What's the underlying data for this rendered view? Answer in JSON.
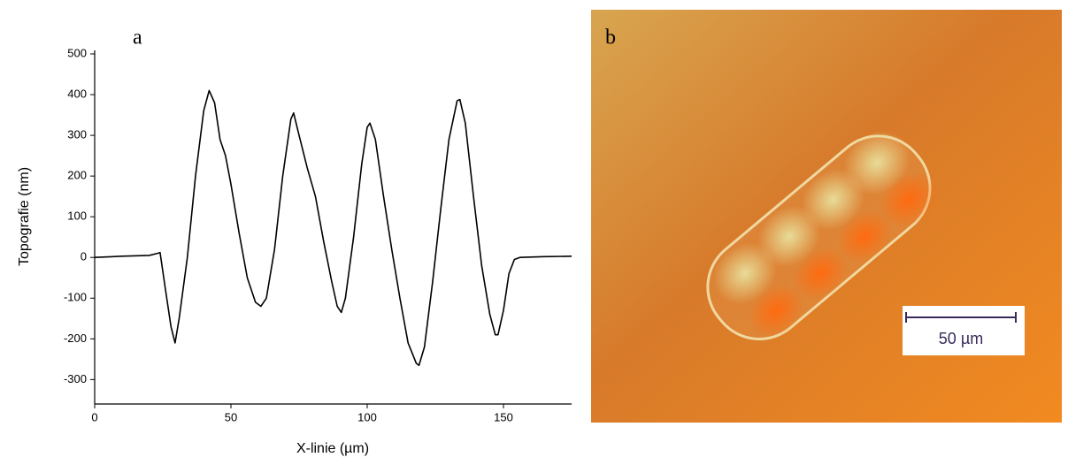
{
  "chart_data": {
    "type": "line",
    "panel_label": "a",
    "x_label": "X-linie (µm)",
    "y_label": "Topografie (nm)",
    "x": [
      0,
      10,
      20,
      23,
      24,
      26,
      28,
      29.5,
      31,
      34,
      37,
      40,
      42,
      44,
      46,
      48,
      50,
      53,
      56,
      59,
      61,
      63,
      66,
      69,
      72,
      73,
      75,
      78,
      81,
      84,
      87,
      89,
      90.5,
      92,
      95,
      98,
      100,
      101,
      103,
      106,
      109,
      112,
      115,
      118,
      119,
      121,
      124,
      127,
      130,
      133,
      134,
      136,
      139,
      142,
      145,
      147,
      148,
      150,
      152,
      154,
      156,
      165,
      175
    ],
    "series": [
      {
        "color": "#000000",
        "values": [
          0,
          3,
          5,
          10,
          12,
          -80,
          -170,
          -210,
          -150,
          0,
          200,
          360,
          410,
          380,
          290,
          250,
          180,
          60,
          -50,
          -110,
          -120,
          -100,
          20,
          200,
          340,
          355,
          300,
          220,
          150,
          40,
          -60,
          -120,
          -135,
          -100,
          50,
          230,
          320,
          330,
          290,
          150,
          20,
          -100,
          -210,
          -260,
          -265,
          -220,
          -60,
          120,
          290,
          385,
          388,
          330,
          150,
          -20,
          -140,
          -190,
          -190,
          -130,
          -40,
          -5,
          0,
          2,
          3
        ]
      }
    ],
    "xlim": [
      0,
      175
    ],
    "xticks": [
      0,
      50,
      100,
      150
    ],
    "ylim": [
      -360,
      500
    ],
    "yticks": [
      500,
      400,
      300,
      200,
      100,
      0,
      -100,
      -200,
      -300
    ]
  },
  "image": {
    "panel_label": "b",
    "scale_bar": "50 µm"
  }
}
